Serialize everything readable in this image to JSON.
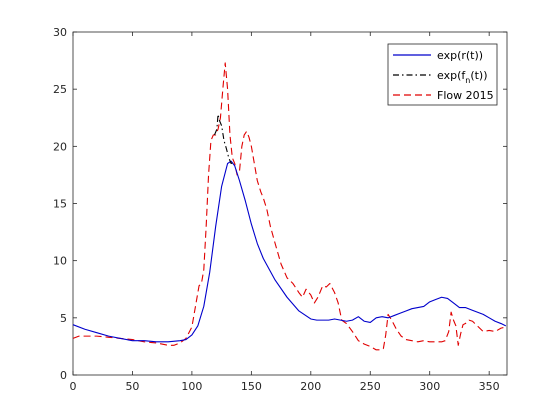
{
  "chart_data": {
    "type": "line",
    "title": "",
    "xlabel": "",
    "ylabel": "",
    "xlim": [
      0,
      365
    ],
    "ylim": [
      0,
      30
    ],
    "xticks": [
      0,
      50,
      100,
      150,
      200,
      250,
      300,
      350
    ],
    "yticks": [
      0,
      5,
      10,
      15,
      20,
      25,
      30
    ],
    "grid": false,
    "legend_position": "top-right",
    "series": [
      {
        "name": "exp(r(t))",
        "color": "#0000cc",
        "style": "solid",
        "x": [
          0,
          10,
          20,
          30,
          40,
          50,
          60,
          70,
          80,
          90,
          95,
          100,
          105,
          110,
          115,
          120,
          125,
          130,
          133,
          136,
          140,
          145,
          150,
          155,
          160,
          170,
          180,
          190,
          200,
          205,
          210,
          215,
          220,
          225,
          230,
          235,
          240,
          245,
          250,
          255,
          260,
          265,
          270,
          275,
          280,
          285,
          290,
          295,
          300,
          305,
          310,
          315,
          320,
          325,
          330,
          335,
          340,
          345,
          350,
          355,
          360,
          364
        ],
        "y": [
          4.4,
          4.0,
          3.7,
          3.4,
          3.2,
          3.0,
          3.0,
          2.9,
          2.9,
          3.0,
          3.1,
          3.5,
          4.3,
          6.0,
          9.0,
          13.0,
          16.5,
          18.5,
          18.7,
          18.3,
          17.0,
          15.2,
          13.2,
          11.5,
          10.2,
          8.3,
          6.8,
          5.6,
          4.9,
          4.8,
          4.8,
          4.8,
          4.9,
          4.8,
          4.7,
          4.8,
          5.1,
          4.7,
          4.6,
          5.0,
          5.1,
          5.0,
          5.2,
          5.4,
          5.6,
          5.8,
          5.9,
          6.0,
          6.4,
          6.6,
          6.8,
          6.7,
          6.3,
          5.9,
          5.9,
          5.7,
          5.5,
          5.3,
          5.0,
          4.7,
          4.5,
          4.3
        ]
      },
      {
        "name": "exp(f_n(t))",
        "legend_main": "exp(f",
        "legend_sub": "n",
        "legend_tail": "(t))",
        "color": "#000000",
        "style": "dashdot",
        "x": [
          119,
          121,
          122,
          123,
          125,
          127,
          129,
          131,
          133,
          135
        ],
        "y": [
          21.0,
          21.5,
          22.8,
          22.3,
          21.8,
          20.5,
          19.8,
          19.0,
          18.5,
          18.6
        ]
      },
      {
        "name": "Flow 2015",
        "color": "#e00000",
        "style": "dashed",
        "x": [
          0,
          5,
          10,
          20,
          30,
          40,
          50,
          60,
          70,
          80,
          85,
          90,
          95,
          100,
          103,
          106,
          108,
          110,
          112,
          114,
          116,
          118,
          120,
          122,
          124,
          126,
          128,
          130,
          132,
          134,
          136,
          138,
          140,
          142,
          144,
          146,
          148,
          150,
          152,
          155,
          158,
          160,
          163,
          166,
          170,
          175,
          180,
          185,
          190,
          193,
          196,
          200,
          203,
          206,
          210,
          213,
          216,
          220,
          223,
          226,
          230,
          235,
          240,
          245,
          250,
          255,
          258,
          261,
          263,
          265,
          268,
          272,
          276,
          280,
          285,
          290,
          295,
          300,
          305,
          310,
          313,
          316,
          318,
          320,
          322,
          324,
          326,
          328,
          330,
          333,
          336,
          340,
          345,
          350,
          355,
          360,
          364
        ],
        "y": [
          3.2,
          3.4,
          3.4,
          3.4,
          3.3,
          3.2,
          3.1,
          2.9,
          2.8,
          2.6,
          2.6,
          2.8,
          3.2,
          4.2,
          6.0,
          7.8,
          8.0,
          9.2,
          13.0,
          17.5,
          20.5,
          21.0,
          21.0,
          21.5,
          22.5,
          25.0,
          27.3,
          25.0,
          21.0,
          19.0,
          18.5,
          17.5,
          17.8,
          20.0,
          21.0,
          21.3,
          20.8,
          20.0,
          18.8,
          17.0,
          16.0,
          15.5,
          14.5,
          13.0,
          11.5,
          9.7,
          8.5,
          8.0,
          7.2,
          6.8,
          7.5,
          7.0,
          6.3,
          6.8,
          7.8,
          7.7,
          8.0,
          7.2,
          6.3,
          4.8,
          4.5,
          3.8,
          3.0,
          2.7,
          2.5,
          2.2,
          2.2,
          2.3,
          3.5,
          5.3,
          4.8,
          4.0,
          3.4,
          3.1,
          3.0,
          2.9,
          3.0,
          2.9,
          2.9,
          2.9,
          3.0,
          3.8,
          5.5,
          4.8,
          4.3,
          2.6,
          3.6,
          4.4,
          4.5,
          4.8,
          4.7,
          4.3,
          3.8,
          3.9,
          3.8,
          4.1,
          4.2
        ]
      }
    ]
  }
}
